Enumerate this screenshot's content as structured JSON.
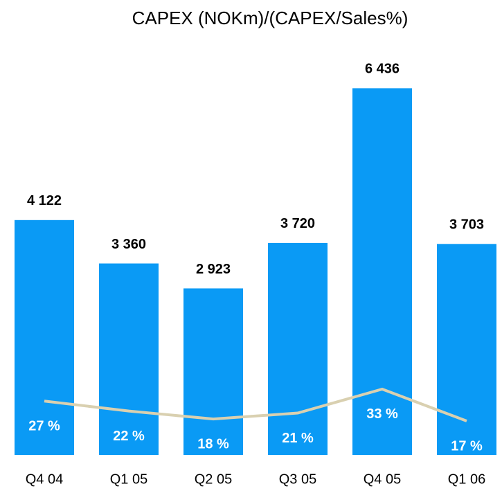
{
  "chart_data": {
    "type": "bar_line",
    "title": "CAPEX (NOKm)/(CAPEX/Sales%)",
    "categories": [
      "Q4 04",
      "Q1 05",
      "Q2 05",
      "Q3 05",
      "Q4 05",
      "Q1 06"
    ],
    "series": [
      {
        "type": "bar",
        "color": "#0a9af5",
        "values": [
          4122,
          3360,
          2923,
          3720,
          6436,
          3703
        ],
        "value_labels": [
          "4 122",
          "3 360",
          "2 923",
          "3 720",
          "6 436",
          "3 703"
        ]
      },
      {
        "type": "line",
        "axis": "y2",
        "color": "#d9d0b0",
        "values": [
          27,
          22,
          18,
          21,
          33,
          17
        ],
        "value_labels": [
          "27 %",
          "22 %",
          "18 %",
          "21 %",
          "33 %",
          "17 %"
        ]
      }
    ],
    "ylim": [
      0,
      7000
    ],
    "y2lim": [
      0,
      200
    ]
  }
}
